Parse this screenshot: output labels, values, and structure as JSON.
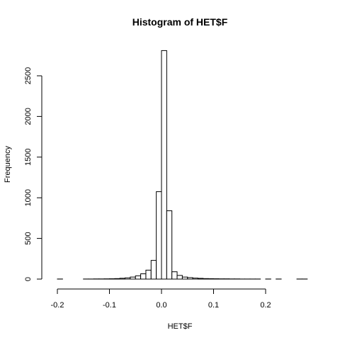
{
  "chart_data": {
    "type": "bar",
    "title": "Histogram of HET$F",
    "xlabel": "HET$F",
    "ylabel": "Frequency",
    "xlim": [
      -0.2,
      0.28
    ],
    "ylim": [
      0,
      2800
    ],
    "x_ticks": [
      -0.2,
      -0.1,
      0.0,
      0.1,
      0.2
    ],
    "x_tick_labels": [
      "-0.2",
      "-0.1",
      "0.0",
      "0.1",
      "0.2"
    ],
    "y_ticks": [
      0,
      500,
      1000,
      1500,
      2000,
      2500
    ],
    "y_tick_labels": [
      "0",
      "500",
      "1000",
      "1500",
      "2000",
      "2500"
    ],
    "bin_width": 0.01,
    "bins_start": [
      -0.2,
      -0.19,
      -0.18,
      -0.17,
      -0.16,
      -0.15,
      -0.14,
      -0.13,
      -0.12,
      -0.11,
      -0.1,
      -0.09,
      -0.08,
      -0.07,
      -0.06,
      -0.05,
      -0.04,
      -0.03,
      -0.02,
      -0.01,
      0.0,
      0.01,
      0.02,
      0.03,
      0.04,
      0.05,
      0.06,
      0.07,
      0.08,
      0.09,
      0.1,
      0.11,
      0.12,
      0.13,
      0.14,
      0.15,
      0.16,
      0.17,
      0.18,
      0.19,
      0.2,
      0.21,
      0.22,
      0.23,
      0.24,
      0.25,
      0.26,
      0.27
    ],
    "values": [
      1,
      0,
      0,
      0,
      0,
      1,
      1,
      2,
      2,
      3,
      4,
      6,
      10,
      15,
      25,
      40,
      65,
      110,
      230,
      1075,
      2810,
      840,
      90,
      45,
      25,
      18,
      12,
      9,
      6,
      5,
      4,
      3,
      3,
      2,
      2,
      1,
      1,
      1,
      1,
      0,
      1,
      0,
      1,
      0,
      0,
      0,
      1,
      1
    ]
  }
}
